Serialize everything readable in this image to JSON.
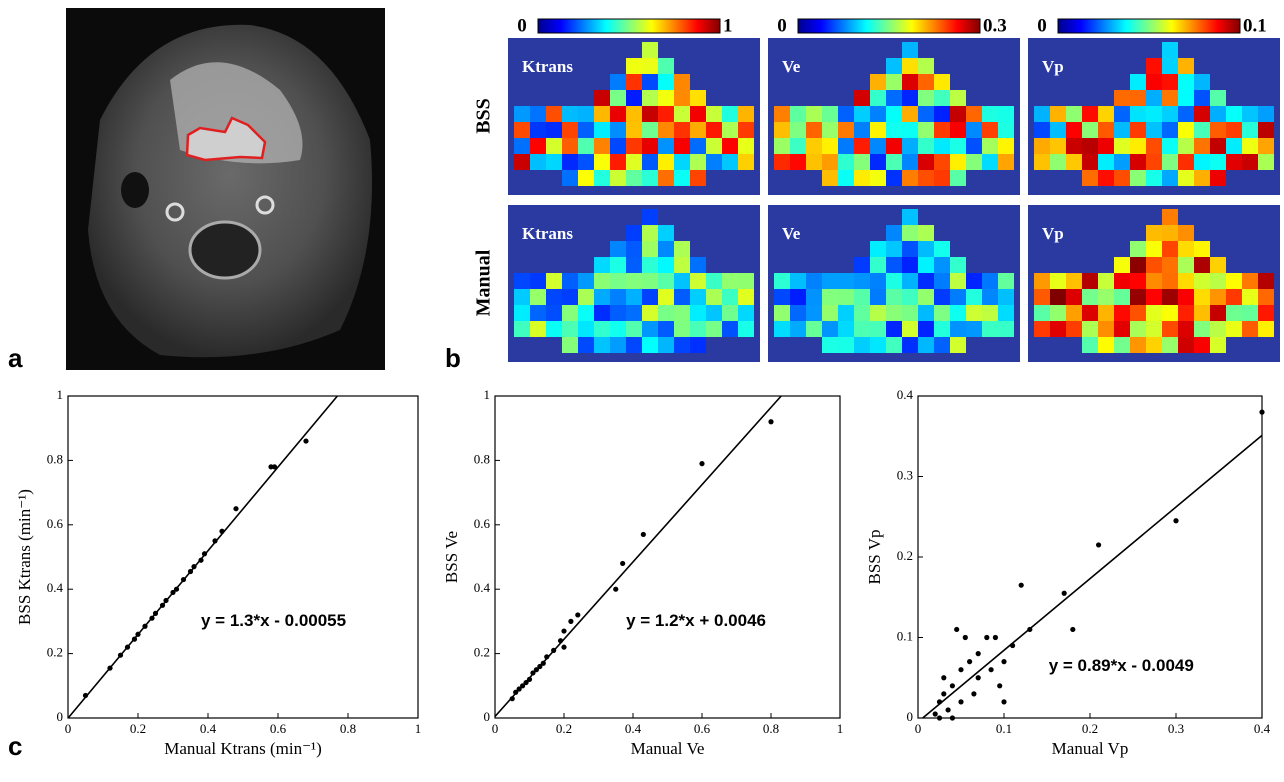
{
  "panel_labels": [
    "a",
    "b",
    "c"
  ],
  "heatmaps": {
    "rows": [
      "BSS",
      "Manual"
    ],
    "maps": [
      "Ktrans",
      "Ve",
      "Vp"
    ],
    "colorbars": [
      {
        "min": "0",
        "max": "1"
      },
      {
        "min": "0",
        "max": "0.3"
      },
      {
        "min": "0",
        "max": "0.1"
      }
    ]
  },
  "chart_data": [
    {
      "type": "scatter",
      "x_label": "Manual Ktrans (min⁻¹)",
      "y_label": "BSS Ktrans (min⁻¹)",
      "color": "#000000",
      "xlim": [
        0,
        1
      ],
      "ylim": [
        0,
        1
      ],
      "xticks": [
        0,
        0.2,
        0.4,
        0.6,
        0.8,
        1
      ],
      "yticks": [
        0,
        0.2,
        0.4,
        0.6,
        0.8,
        1
      ],
      "x": [
        0.05,
        0.12,
        0.15,
        0.17,
        0.19,
        0.2,
        0.22,
        0.24,
        0.25,
        0.27,
        0.28,
        0.3,
        0.31,
        0.33,
        0.35,
        0.36,
        0.38,
        0.39,
        0.42,
        0.44,
        0.48,
        0.58,
        0.59,
        0.68
      ],
      "values": [
        0.07,
        0.155,
        0.195,
        0.22,
        0.245,
        0.26,
        0.285,
        0.31,
        0.325,
        0.35,
        0.365,
        0.39,
        0.4,
        0.43,
        0.455,
        0.47,
        0.49,
        0.51,
        0.55,
        0.58,
        0.65,
        0.78,
        0.78,
        0.86
      ],
      "fit": {
        "slope": 1.3,
        "intercept": -0.00055,
        "label": "y = 1.3*x - 0.00055"
      }
    },
    {
      "type": "scatter",
      "x_label": "Manual Ve",
      "y_label": "BSS Ve",
      "color": "#000000",
      "xlim": [
        0,
        1
      ],
      "ylim": [
        0,
        1
      ],
      "xticks": [
        0,
        0.2,
        0.4,
        0.6,
        0.8,
        1
      ],
      "yticks": [
        0,
        0.2,
        0.4,
        0.6,
        0.8,
        1
      ],
      "x": [
        0.05,
        0.06,
        0.07,
        0.08,
        0.09,
        0.1,
        0.11,
        0.12,
        0.13,
        0.14,
        0.15,
        0.17,
        0.19,
        0.2,
        0.2,
        0.22,
        0.24,
        0.35,
        0.37,
        0.43,
        0.6,
        0.8
      ],
      "values": [
        0.06,
        0.08,
        0.09,
        0.1,
        0.11,
        0.12,
        0.14,
        0.15,
        0.16,
        0.17,
        0.19,
        0.21,
        0.24,
        0.27,
        0.22,
        0.3,
        0.32,
        0.4,
        0.48,
        0.57,
        0.79,
        0.92
      ],
      "fit": {
        "slope": 1.2,
        "intercept": 0.0046,
        "label": "y = 1.2*x + 0.0046"
      }
    },
    {
      "type": "scatter",
      "x_label": "Manual Vp",
      "y_label": "BSS Vp",
      "color": "#000000",
      "xlim": [
        0,
        0.4
      ],
      "ylim": [
        0,
        0.4
      ],
      "xticks": [
        0,
        0.1,
        0.2,
        0.3,
        0.4
      ],
      "yticks": [
        0,
        0.1,
        0.2,
        0.3,
        0.4
      ],
      "x": [
        0.02,
        0.025,
        0.03,
        0.03,
        0.035,
        0.04,
        0.045,
        0.05,
        0.05,
        0.055,
        0.06,
        0.065,
        0.07,
        0.07,
        0.08,
        0.085,
        0.09,
        0.095,
        0.1,
        0.1,
        0.11,
        0.12,
        0.13,
        0.17,
        0.18,
        0.21,
        0.3,
        0.4,
        0.025,
        0.04
      ],
      "values": [
        0.005,
        0.02,
        0.03,
        0.05,
        0.01,
        0.04,
        0.11,
        0.02,
        0.06,
        0.1,
        0.07,
        0.03,
        0.05,
        0.08,
        0.1,
        0.06,
        0.1,
        0.04,
        0.07,
        0.02,
        0.09,
        0.165,
        0.11,
        0.155,
        0.11,
        0.215,
        0.245,
        0.38,
        0,
        0
      ],
      "fit": {
        "slope": 0.89,
        "intercept": -0.0049,
        "label": "y = 0.89*x - 0.0049"
      }
    }
  ]
}
